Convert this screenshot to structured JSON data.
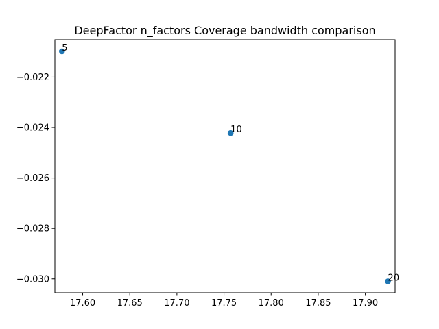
{
  "chart_data": {
    "type": "scatter",
    "title": "DeepFactor n_factors Coverage bandwidth comparison",
    "xlabel": "",
    "ylabel": "",
    "xlim": [
      17.5705,
      17.9316
    ],
    "ylim": [
      -0.03055,
      -0.02052
    ],
    "x_ticks": [
      17.6,
      17.65,
      17.7,
      17.75,
      17.8,
      17.85,
      17.9
    ],
    "x_tick_labels": [
      "17.60",
      "17.65",
      "17.70",
      "17.75",
      "17.80",
      "17.85",
      "17.90"
    ],
    "y_ticks": [
      -0.022,
      -0.024,
      -0.026,
      -0.028,
      -0.03
    ],
    "y_tick_labels": [
      "−0.022",
      "−0.024",
      "−0.026",
      "−0.028",
      "−0.030"
    ],
    "grid": false,
    "series": [
      {
        "points": [
          {
            "x": 17.578,
            "y": -0.02098,
            "label": "5"
          },
          {
            "x": 17.757,
            "y": -0.02422,
            "label": "10"
          },
          {
            "x": 17.924,
            "y": -0.0301,
            "label": "20"
          }
        ]
      }
    ],
    "colors": {
      "marker": "#1f77b4",
      "axes": "#000000",
      "background": "#ffffff"
    }
  }
}
